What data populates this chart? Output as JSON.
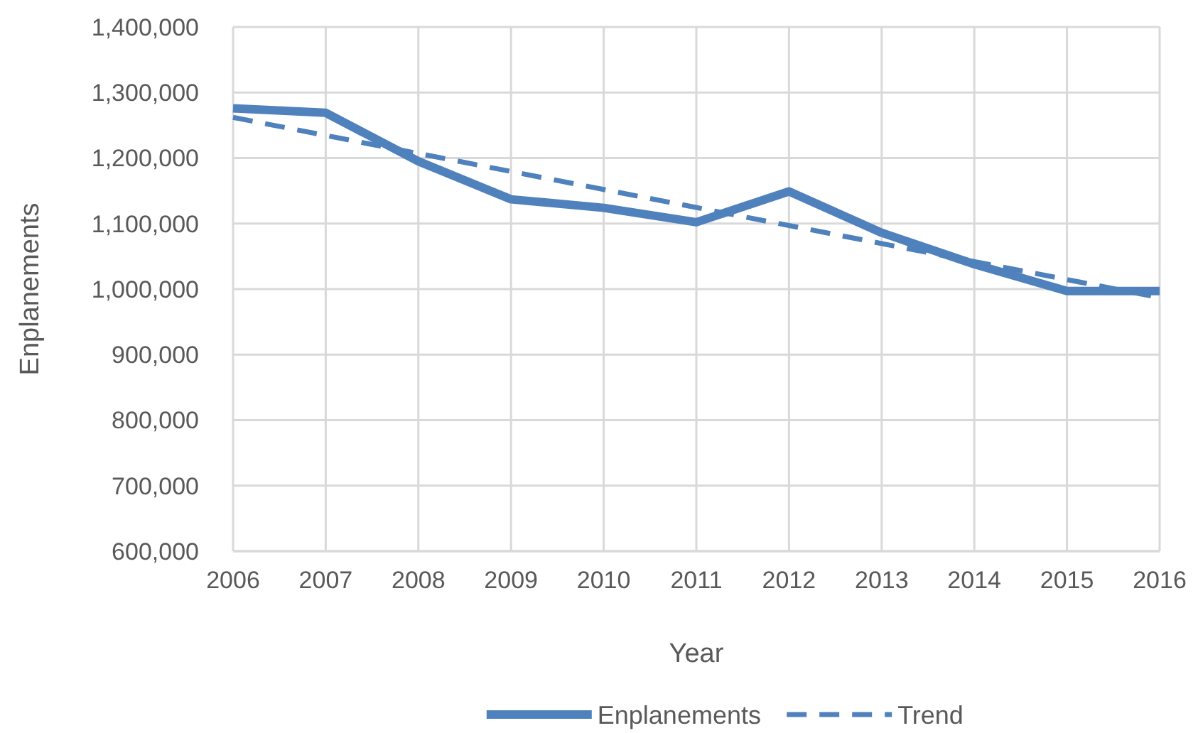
{
  "chart_data": {
    "type": "line",
    "xlabel": "Year",
    "ylabel": "Enplanements",
    "x": [
      2006,
      2007,
      2008,
      2009,
      2010,
      2011,
      2012,
      2013,
      2014,
      2015,
      2016
    ],
    "series": [
      {
        "name": "Enplanements",
        "color": "#4f81bd",
        "line_style": "solid",
        "values": [
          1276000,
          1269000,
          1195000,
          1137000,
          1124000,
          1102000,
          1149000,
          1086000,
          1038000,
          997000,
          997000
        ]
      },
      {
        "name": "Trend",
        "type": "line",
        "color": "#4f81bd",
        "line_style": "dashed",
        "x": [
          2006,
          2016
        ],
        "values": [
          1262000,
          987000
        ]
      }
    ],
    "xlim": [
      2006,
      2016
    ],
    "xticks": [
      2006,
      2007,
      2008,
      2009,
      2010,
      2011,
      2012,
      2013,
      2014,
      2015,
      2016
    ],
    "ylim": [
      600000,
      1400000
    ],
    "yticks": [
      {
        "value": 600000,
        "label": "600,000"
      },
      {
        "value": 700000,
        "label": "700,000"
      },
      {
        "value": 800000,
        "label": "800,000"
      },
      {
        "value": 900000,
        "label": "900,000"
      },
      {
        "value": 1000000,
        "label": "1,000,000"
      },
      {
        "value": 1100000,
        "label": "1,100,000"
      },
      {
        "value": 1200000,
        "label": "1,200,000"
      },
      {
        "value": 1300000,
        "label": "1,300,000"
      },
      {
        "value": 1400000,
        "label": "1,400,000"
      }
    ],
    "grid": true,
    "legend": "bottom"
  }
}
